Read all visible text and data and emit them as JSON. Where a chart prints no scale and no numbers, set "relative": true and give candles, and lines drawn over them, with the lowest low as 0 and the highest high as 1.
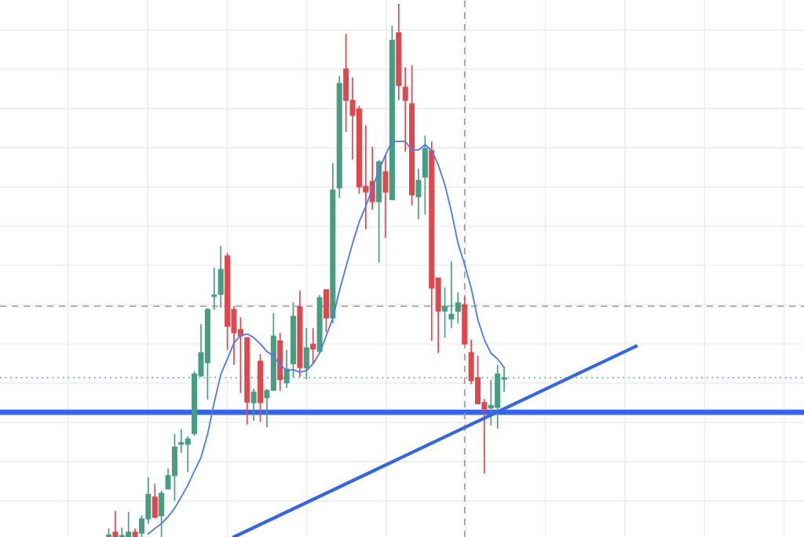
{
  "chart_data": {
    "type": "candlestick",
    "relative": true,
    "grid": true,
    "tick_labels": false,
    "categories": [
      null,
      null,
      null,
      null,
      null,
      null,
      null,
      null,
      null,
      null,
      null,
      null,
      null,
      null,
      null,
      null,
      null,
      null,
      null,
      null,
      null,
      null,
      null,
      null,
      null,
      null,
      null,
      null,
      null,
      null,
      null,
      null,
      null,
      null,
      null,
      null,
      null,
      null,
      null,
      null,
      null,
      null,
      null,
      null,
      null,
      null,
      null,
      null,
      null,
      null,
      null,
      null,
      null,
      null,
      null,
      null,
      null,
      null,
      null,
      null,
      null,
      null,
      null,
      null,
      null,
      null,
      null,
      null,
      null,
      null,
      null,
      null,
      null,
      null,
      null,
      null,
      null,
      null,
      null,
      null,
      null,
      null,
      null,
      null,
      null,
      null,
      null,
      null,
      null,
      null,
      null,
      null,
      null,
      null,
      null,
      null,
      null,
      null,
      null,
      null,
      null,
      null,
      null,
      null,
      null,
      null,
      null,
      null,
      null,
      null,
      null,
      null,
      null,
      null,
      null,
      null,
      null,
      null,
      null,
      null,
      null,
      null
    ],
    "ohlc": [
      null,
      null,
      null,
      null,
      null,
      null,
      null,
      null,
      null,
      null,
      null,
      null,
      null,
      null,
      null,
      null,
      [
        0,
        0.016,
        0,
        0.004
      ],
      [
        0.009,
        0.049,
        0,
        0
      ],
      [
        0,
        0.018,
        0,
        0.003
      ],
      [
        0,
        0.047,
        0,
        0.009
      ],
      [
        0.009,
        0.016,
        0,
        0
      ],
      [
        0.007,
        0.041,
        0,
        0.034
      ],
      [
        0.034,
        0.112,
        0.025,
        0.08
      ],
      [
        0.075,
        0.1,
        0.035,
        0.037
      ],
      [
        0.04,
        0.087,
        0,
        0.082
      ],
      [
        0.09,
        0.128,
        0.09,
        0.115
      ],
      [
        0.115,
        0.193,
        0.068,
        0.169
      ],
      [
        0.174,
        0.202,
        0.158,
        0.177
      ],
      [
        0.174,
        0.189,
        0.122,
        0.184
      ],
      [
        0.194,
        0.311,
        0.19,
        0.306
      ],
      [
        0.302,
        0.399,
        0.3,
        0.346
      ],
      [
        0.327,
        0.429,
        0.258,
        0.427
      ],
      [
        0.451,
        0.505,
        0.426,
        0.454
      ],
      [
        0.455,
        0.546,
        0.43,
        0.502
      ],
      [
        0.527,
        0.533,
        0.351,
        0.395
      ],
      [
        0.427,
        0.433,
        0.323,
        0.383
      ],
      [
        0.389,
        0.412,
        0.27,
        0.377
      ],
      [
        0.374,
        0.374,
        0.211,
        0.253
      ],
      [
        0.252,
        0.278,
        0.218,
        0.272
      ],
      [
        0.33,
        0.343,
        0.216,
        0.252
      ],
      [
        0.261,
        0.278,
        0.206,
        0.275
      ],
      [
        0.275,
        0.42,
        0.275,
        0.377
      ],
      [
        0.368,
        0.383,
        0.274,
        0.295
      ],
      [
        0.289,
        0.351,
        0.28,
        0.315
      ],
      [
        0.325,
        0.44,
        0.3,
        0.414
      ],
      [
        0.432,
        0.462,
        0.3,
        0.318
      ],
      [
        0.317,
        0.392,
        0.296,
        0.355
      ],
      [
        0.362,
        0.392,
        0.324,
        0.353
      ],
      [
        0.348,
        0.454,
        0.345,
        0.449
      ],
      [
        0.464,
        0.464,
        0.384,
        0.411
      ],
      [
        0.411,
        0.701,
        0.401,
        0.651
      ],
      [
        0.655,
        0.865,
        0.636,
        0.851
      ],
      [
        0.878,
        0.944,
        0.76,
        0.819
      ],
      [
        0.819,
        0.862,
        0.708,
        0.791
      ],
      [
        0.803,
        0.809,
        0.644,
        0.657
      ],
      [
        0.658,
        0.772,
        0.577,
        0.647
      ],
      [
        0.667,
        0.732,
        0.614,
        0.629
      ],
      [
        0.629,
        0.707,
        0.515,
        0.704
      ],
      [
        0.685,
        0.717,
        0.561,
        0.647
      ],
      [
        0.633,
        0.959,
        0.632,
        0.932
      ],
      [
        0.946,
        1,
        0.819,
        0.847
      ],
      [
        0.844,
        0.881,
        0.723,
        0.819
      ],
      [
        0.813,
        0.885,
        0.622,
        0.642
      ],
      [
        0.638,
        0.691,
        0.596,
        0.669
      ],
      [
        0.675,
        0.753,
        0.605,
        0.729
      ],
      [
        0.725,
        0.742,
        0.368,
        0.467
      ],
      [
        0.486,
        0.486,
        0.345,
        0.424
      ],
      [
        0.424,
        0.468,
        0.374,
        0.433
      ],
      [
        0.409,
        0.517,
        0.392,
        0.418
      ],
      [
        0.423,
        0.459,
        0.401,
        0.439
      ],
      [
        0.436,
        0.451,
        0.362,
        0.362
      ],
      [
        0.346,
        0.37,
        0.287,
        0.293
      ],
      [
        0.299,
        0.34,
        0.25,
        0.25
      ],
      [
        0.252,
        0.259,
        0.119,
        0.24
      ],
      [
        0.242,
        0.295,
        0.209,
        0.247
      ],
      [
        0.243,
        0.323,
        0.203,
        0.306
      ],
      [
        0.296,
        0.318,
        0.272,
        0.299
      ],
      null,
      null,
      null,
      null,
      null,
      null,
      null,
      null,
      null,
      null,
      null,
      null,
      null,
      null,
      null,
      null,
      null,
      null,
      null,
      null,
      null,
      null,
      null,
      null,
      null,
      null,
      null,
      null,
      null,
      null,
      null,
      null,
      null,
      null,
      null,
      null,
      null,
      null,
      null,
      null,
      null,
      null,
      null,
      null,
      null
    ],
    "colors": [
      null,
      null,
      null,
      null,
      null,
      null,
      null,
      null,
      null,
      null,
      null,
      null,
      null,
      null,
      null,
      null,
      "#459d82",
      "#e0474d",
      "#459d82",
      "#459d82",
      "#e0474d",
      "#459d82",
      "#459d82",
      "#e0474d",
      "#459d82",
      "#459d82",
      "#459d82",
      "#459d82",
      "#459d82",
      "#459d82",
      "#459d82",
      "#459d82",
      "#459d82",
      "#459d82",
      "#e0474d",
      "#e0474d",
      "#e0474d",
      "#e0474d",
      "#459d82",
      "#e0474d",
      "#459d82",
      "#459d82",
      "#e0474d",
      "#459d82",
      "#459d82",
      "#e0474d",
      "#459d82",
      "#e0474d",
      "#459d82",
      "#e0474d",
      "#459d82",
      "#459d82",
      "#e0474d",
      "#e0474d",
      "#e0474d",
      "#e0474d",
      "#e0474d",
      "#459d82",
      "#e0474d",
      "#459d82",
      "#e0474d",
      "#e0474d",
      "#e0474d",
      "#459d82",
      "#459d82",
      "#e0474d",
      "#e0474d",
      "#459d82",
      "#459d82",
      "#459d82",
      "#e0474d",
      "#e0474d",
      "#e0474d",
      "#e0474d",
      "#459d82",
      "#459d82",
      "#459d82",
      null,
      null,
      null,
      null,
      null,
      null,
      null,
      null,
      null,
      null,
      null,
      null,
      null,
      null,
      null,
      null,
      null,
      null,
      null,
      null,
      null,
      null,
      null,
      null,
      null,
      null,
      null,
      null,
      null,
      null,
      null,
      null,
      null,
      null,
      null,
      null,
      null,
      null,
      null,
      null,
      null,
      null,
      null,
      null,
      null
    ],
    "series": [
      {
        "type": "line",
        "color": "#4d79f6",
        "values": [
          null,
          null,
          null,
          null,
          null,
          null,
          null,
          null,
          null,
          null,
          null,
          null,
          null,
          null,
          null,
          null,
          null,
          null,
          null,
          null,
          null,
          null,
          0.006,
          0.016,
          0.025,
          0.038,
          0.054,
          0.075,
          0.097,
          0.124,
          0.149,
          0.193,
          0.252,
          0.305,
          0.334,
          0.364,
          0.378,
          0.381,
          0.374,
          0.362,
          0.348,
          0.34,
          0.323,
          0.312,
          0.314,
          0.309,
          0.312,
          0.325,
          0.345,
          0.377,
          0.411,
          0.462,
          0.507,
          0.551,
          0.591,
          0.62,
          0.654,
          0.688,
          0.717,
          0.742,
          0.742,
          0.742,
          0.726,
          0.726,
          0.736,
          0.725,
          0.698,
          0.661,
          0.61,
          0.551,
          0.511,
          0.467,
          0.408,
          0.37,
          0.345,
          0.334,
          0.318,
          null,
          null,
          null,
          null,
          null,
          null,
          null,
          null,
          null,
          null,
          null,
          null,
          null,
          null,
          null,
          null,
          null,
          null,
          null,
          null,
          null,
          null,
          null,
          null,
          null,
          null,
          null,
          null,
          null,
          null,
          null,
          null,
          null,
          null,
          null,
          null,
          null,
          null,
          null,
          null,
          null,
          null,
          null,
          null,
          null
        ]
      },
      {
        "type": "line",
        "color": "#3366e6",
        "values": [
          null,
          null,
          null,
          null,
          null,
          null,
          null,
          null,
          null,
          null,
          null,
          null,
          null,
          null,
          null,
          null,
          null,
          null,
          null,
          null,
          null,
          null,
          null,
          null,
          null,
          null,
          null,
          null,
          null,
          null,
          null,
          null,
          null,
          null,
          null,
          0,
          null,
          null,
          null,
          null,
          null,
          null,
          null,
          null,
          null,
          null,
          null,
          null,
          null,
          null,
          null,
          null,
          null,
          null,
          null,
          null,
          null,
          null,
          null,
          null,
          null,
          null,
          null,
          null,
          null,
          null,
          null,
          null,
          null,
          null,
          null,
          null,
          null,
          null,
          null,
          null,
          null,
          null,
          null,
          null,
          null,
          null,
          null,
          null,
          null,
          null,
          null,
          null,
          null,
          null,
          null,
          null,
          null,
          null,
          null,
          null,
          0.358,
          null,
          null,
          null,
          null,
          null,
          null,
          null,
          null,
          null,
          null,
          null,
          null,
          null,
          null,
          null,
          null,
          null,
          null,
          null,
          null,
          null,
          null,
          null,
          null,
          null
        ]
      }
    ],
    "ref_lines": [
      {
        "axis": "y",
        "value": 0.234,
        "color": "#3366ee",
        "line_style": "solid"
      },
      {
        "axis": "y",
        "value": 0.433,
        "color": "#999999",
        "line_style": "dashed"
      },
      {
        "axis": "y",
        "value": 0.299,
        "color": "#459d82",
        "line_style": "dotted"
      }
    ]
  }
}
